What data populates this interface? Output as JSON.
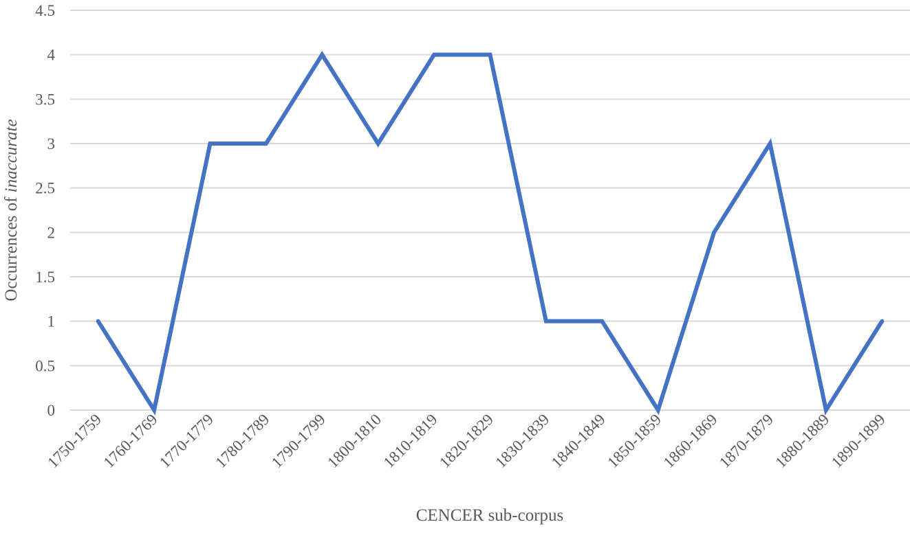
{
  "chart_data": {
    "type": "line",
    "title": "",
    "xlabel": "CENCER sub-corpus",
    "ylabel_prefix": "Occurrences of ",
    "ylabel_italic": "inaccurate",
    "ylim": [
      0,
      4.5
    ],
    "yticks": [
      "0",
      "0.5",
      "1",
      "1.5",
      "2",
      "2.5",
      "3",
      "3.5",
      "4",
      "4.5"
    ],
    "grid": true,
    "legend": "none",
    "categories": [
      "1750-1759",
      "1760-1769",
      "1770-1779",
      "1780-1789",
      "1790-1799",
      "1800-1810",
      "1810-1819",
      "1820-1829",
      "1830-1839",
      "1840-1849",
      "1850-1859",
      "1860-1869",
      "1870-1879",
      "1880-1889",
      "1890-1899"
    ],
    "series": [
      {
        "values": [
          1,
          0,
          3,
          3,
          4,
          3,
          4,
          4,
          1,
          1,
          0,
          2,
          3,
          0,
          1
        ],
        "color": "#4472C4"
      }
    ],
    "grid_color": "#D9D9D9"
  }
}
